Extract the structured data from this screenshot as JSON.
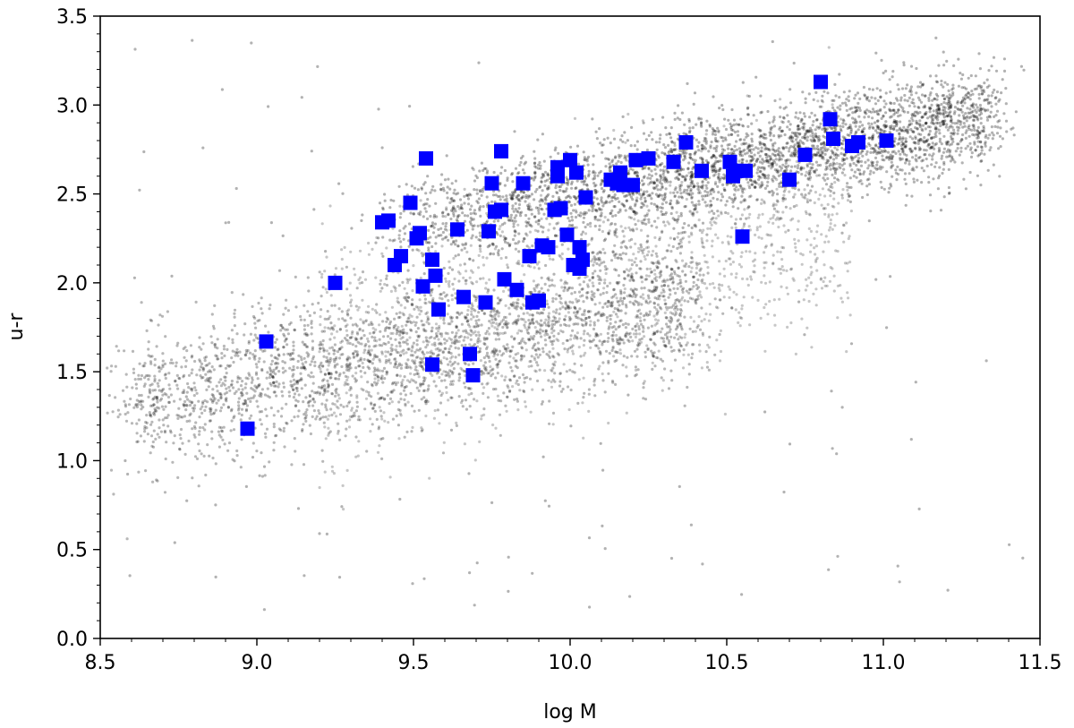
{
  "chart_data": {
    "type": "scatter",
    "xlabel": "log M",
    "ylabel": "u-r",
    "xlim": [
      8.5,
      11.5
    ],
    "ylim": [
      0.0,
      3.5
    ],
    "x_ticks": [
      "8.5",
      "9.0",
      "9.5",
      "10.0",
      "10.5",
      "11.0",
      "11.5"
    ],
    "y_ticks": [
      "0.0",
      "0.5",
      "1.0",
      "1.5",
      "2.0",
      "2.5",
      "3.0",
      "3.5"
    ],
    "grid": false,
    "legend": "none",
    "background_cloud": {
      "color": "#000000",
      "description_of_distribution": "dense grey point cloud",
      "ridges": [
        {
          "x": [
            8.7,
            9.0,
            9.3,
            9.6,
            9.9
          ],
          "y": [
            1.35,
            1.45,
            1.55,
            1.7,
            1.9
          ]
        },
        {
          "x": [
            9.5,
            9.9,
            10.2,
            10.5,
            10.8,
            11.1,
            11.3
          ],
          "y": [
            2.35,
            2.5,
            2.6,
            2.7,
            2.8,
            2.85,
            2.9
          ]
        }
      ]
    },
    "series": [
      {
        "color": "#0000ff",
        "marker": "square",
        "points": [
          [
            8.97,
            1.18
          ],
          [
            9.03,
            1.67
          ],
          [
            9.25,
            2.0
          ],
          [
            9.4,
            2.34
          ],
          [
            9.42,
            2.35
          ],
          [
            9.44,
            2.1
          ],
          [
            9.46,
            2.15
          ],
          [
            9.49,
            2.45
          ],
          [
            9.51,
            2.25
          ],
          [
            9.52,
            2.28
          ],
          [
            9.53,
            1.98
          ],
          [
            9.54,
            2.7
          ],
          [
            9.56,
            1.54
          ],
          [
            9.56,
            2.13
          ],
          [
            9.57,
            2.04
          ],
          [
            9.58,
            1.85
          ],
          [
            9.64,
            2.3
          ],
          [
            9.66,
            1.92
          ],
          [
            9.68,
            1.6
          ],
          [
            9.69,
            1.48
          ],
          [
            9.73,
            1.89
          ],
          [
            9.74,
            2.29
          ],
          [
            9.75,
            2.56
          ],
          [
            9.76,
            2.4
          ],
          [
            9.78,
            2.41
          ],
          [
            9.78,
            2.74
          ],
          [
            9.79,
            2.02
          ],
          [
            9.83,
            1.96
          ],
          [
            9.85,
            2.56
          ],
          [
            9.87,
            2.15
          ],
          [
            9.88,
            1.89
          ],
          [
            9.9,
            1.9
          ],
          [
            9.91,
            2.21
          ],
          [
            9.93,
            2.2
          ],
          [
            9.95,
            2.41
          ],
          [
            9.96,
            2.6
          ],
          [
            9.96,
            2.65
          ],
          [
            9.97,
            2.42
          ],
          [
            9.99,
            2.27
          ],
          [
            10.0,
            2.69
          ],
          [
            10.01,
            2.1
          ],
          [
            10.02,
            2.62
          ],
          [
            10.03,
            2.08
          ],
          [
            10.03,
            2.2
          ],
          [
            10.04,
            2.13
          ],
          [
            10.05,
            2.48
          ],
          [
            10.13,
            2.58
          ],
          [
            10.15,
            2.56
          ],
          [
            10.16,
            2.62
          ],
          [
            10.17,
            2.55
          ],
          [
            10.2,
            2.55
          ],
          [
            10.21,
            2.69
          ],
          [
            10.25,
            2.7
          ],
          [
            10.33,
            2.68
          ],
          [
            10.37,
            2.79
          ],
          [
            10.42,
            2.63
          ],
          [
            10.51,
            2.68
          ],
          [
            10.52,
            2.6
          ],
          [
            10.53,
            2.63
          ],
          [
            10.55,
            2.26
          ],
          [
            10.56,
            2.63
          ],
          [
            10.7,
            2.58
          ],
          [
            10.75,
            2.72
          ],
          [
            10.8,
            3.13
          ],
          [
            10.83,
            2.92
          ],
          [
            10.84,
            2.81
          ],
          [
            10.9,
            2.77
          ],
          [
            10.92,
            2.79
          ],
          [
            11.01,
            2.8
          ]
        ]
      }
    ]
  }
}
